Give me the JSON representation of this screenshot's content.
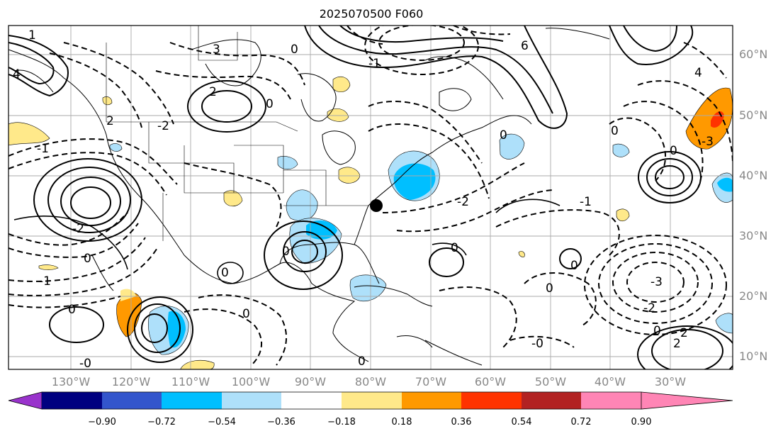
{
  "title": "2025070500 F060",
  "lat_labels": [
    "60°N",
    "50°N",
    "40°N",
    "30°N",
    "20°N",
    "10°N"
  ],
  "lon_labels": [
    "130°W",
    "120°W",
    "110°W",
    "100°W",
    "90°W",
    "80°W",
    "70°W",
    "60°W",
    "50°W",
    "40°W",
    "30°W"
  ],
  "colorbar": {
    "labels": [
      "−0.90",
      "−0.72",
      "−0.54",
      "−0.36",
      "−0.18",
      "0.18",
      "0.36",
      "0.54",
      "0.72",
      "0.90"
    ],
    "colors": [
      "#9933cc",
      "#000080",
      "#3355cc",
      "#00bfff",
      "#aee0fa",
      "#ffffff",
      "#ffe98a",
      "#ff9900",
      "#ff3300",
      "#b22222",
      "#ff85b5"
    ]
  },
  "contour_labels": [
    "1",
    "4",
    "3",
    "2",
    "0",
    "-1",
    "-2",
    "-3",
    "6",
    "4",
    "2",
    "0",
    "-3",
    "-2",
    "-1",
    "2",
    "0",
    "-1",
    "-1",
    "-2",
    "-3",
    "0",
    "-0",
    "0",
    "-0"
  ],
  "station_marker": "black-dot"
}
